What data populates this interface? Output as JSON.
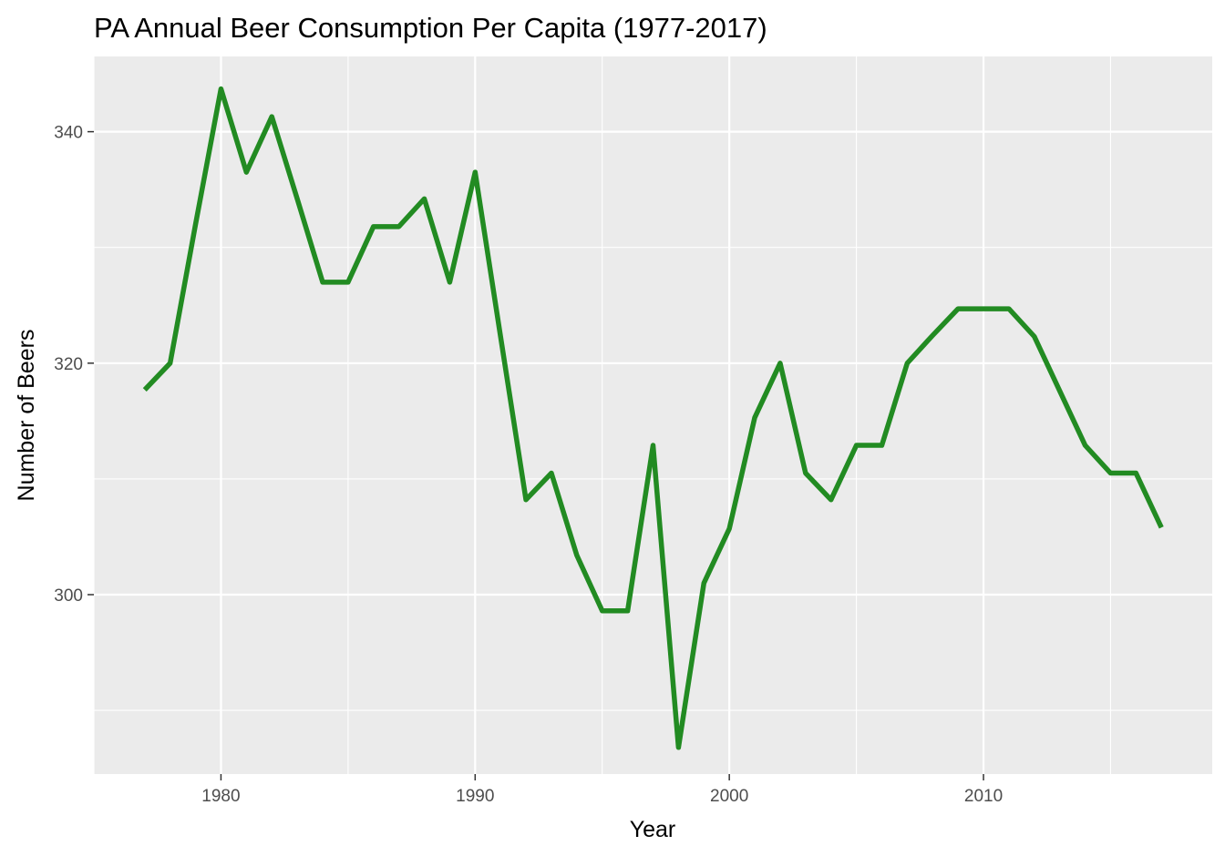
{
  "chart_data": {
    "type": "line",
    "title": "PA Annual Beer Consumption Per Capita (1977-2017)",
    "xlabel": "Year",
    "ylabel": "Number of Beers",
    "xlim": [
      1975,
      2019
    ],
    "ylim": [
      284.5,
      346.5
    ],
    "x_ticks": [
      1980,
      1990,
      2000,
      2010
    ],
    "x_minor_ticks": [
      1975,
      1985,
      1995,
      2005,
      2015
    ],
    "y_ticks": [
      300,
      320,
      340
    ],
    "y_minor_ticks": [
      290,
      310,
      330
    ],
    "grid": true,
    "legend": "none",
    "series": [
      {
        "color": "#228B22",
        "x": [
          1977,
          1978,
          1979,
          1980,
          1981,
          1982,
          1983,
          1984,
          1985,
          1986,
          1987,
          1988,
          1989,
          1990,
          1991,
          1992,
          1993,
          1994,
          1995,
          1996,
          1997,
          1998,
          1999,
          2000,
          2001,
          2002,
          2003,
          2004,
          2005,
          2006,
          2007,
          2008,
          2009,
          2010,
          2011,
          2012,
          2013,
          2014,
          2015,
          2016,
          2017
        ],
        "y": [
          317.7,
          320.0,
          332.0,
          343.7,
          336.5,
          341.3,
          334.2,
          327.0,
          327.0,
          331.8,
          331.8,
          334.2,
          327.0,
          336.5,
          322.3,
          308.2,
          310.5,
          303.4,
          298.6,
          298.6,
          312.9,
          286.8,
          301.0,
          305.7,
          315.3,
          320.0,
          310.5,
          308.2,
          312.9,
          312.9,
          320.0,
          322.4,
          324.7,
          324.7,
          324.7,
          322.3,
          317.6,
          312.9,
          310.5,
          310.5,
          305.8
        ]
      }
    ]
  }
}
